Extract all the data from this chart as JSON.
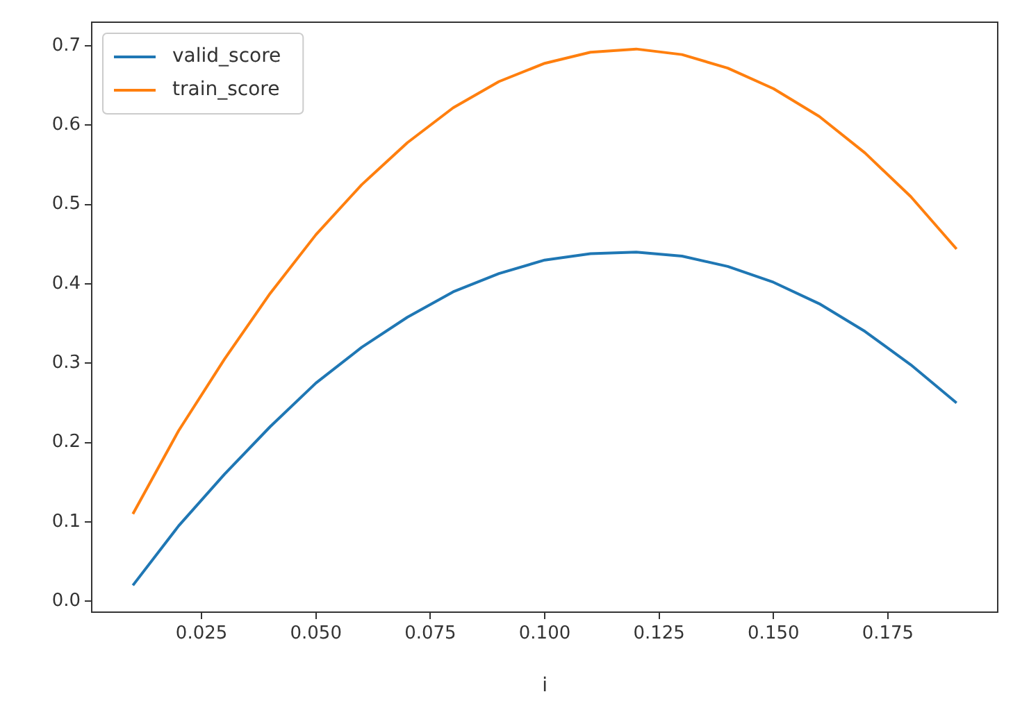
{
  "chart_data": {
    "type": "line",
    "xlabel": "i",
    "x": [
      0.01,
      0.02,
      0.03,
      0.04,
      0.05,
      0.06,
      0.07,
      0.08,
      0.09,
      0.1,
      0.11,
      0.12,
      0.13,
      0.14,
      0.15,
      0.16,
      0.17,
      0.18,
      0.19
    ],
    "series": [
      {
        "name": "valid_score",
        "color": "#1f77b4",
        "values": [
          0.02,
          0.095,
          0.16,
          0.22,
          0.275,
          0.32,
          0.358,
          0.39,
          0.413,
          0.43,
          0.438,
          0.44,
          0.435,
          0.422,
          0.402,
          0.375,
          0.34,
          0.298,
          0.25
        ]
      },
      {
        "name": "train_score",
        "color": "#ff7f0e",
        "values": [
          0.11,
          0.215,
          0.305,
          0.388,
          0.462,
          0.525,
          0.578,
          0.622,
          0.655,
          0.678,
          0.692,
          0.696,
          0.689,
          0.672,
          0.646,
          0.611,
          0.565,
          0.51,
          0.444
        ]
      }
    ],
    "xlim": [
      0.001,
      0.199
    ],
    "xticks": [
      {
        "value": 0.025,
        "label": "0.025"
      },
      {
        "value": 0.05,
        "label": "0.050"
      },
      {
        "value": 0.075,
        "label": "0.075"
      },
      {
        "value": 0.1,
        "label": "0.100"
      },
      {
        "value": 0.125,
        "label": "0.125"
      },
      {
        "value": 0.15,
        "label": "0.150"
      },
      {
        "value": 0.175,
        "label": "0.175"
      }
    ],
    "ylim": [
      -0.0138,
      0.7298
    ],
    "yticks": [
      {
        "value": 0,
        "label": "0.0"
      },
      {
        "value": 0.1,
        "label": "0.1"
      },
      {
        "value": 0.2,
        "label": "0.2"
      },
      {
        "value": 0.3,
        "label": "0.3"
      },
      {
        "value": 0.4,
        "label": "0.4"
      },
      {
        "value": 0.5,
        "label": "0.5"
      },
      {
        "value": 0.6,
        "label": "0.6"
      },
      {
        "value": 0.7,
        "label": "0.7"
      }
    ],
    "grid": false,
    "legend": "top left",
    "marker": "none",
    "line_style": "solid"
  }
}
